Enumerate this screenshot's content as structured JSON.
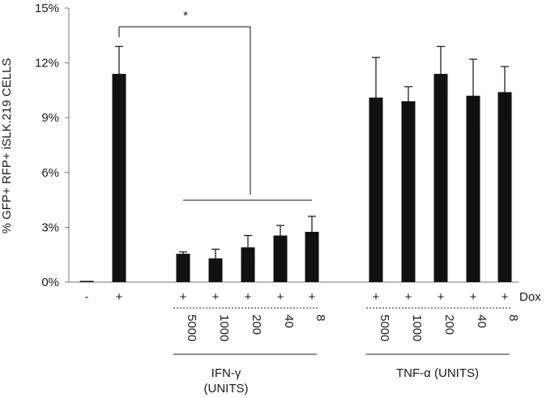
{
  "chart_data": {
    "type": "bar",
    "ylabel": "% GFP+ RFP+ iSLK.219 CELLS",
    "ylim": [
      0,
      15
    ],
    "yticks": [
      {
        "value": 0,
        "label": "0%"
      },
      {
        "value": 3,
        "label": "3%"
      },
      {
        "value": 6,
        "label": "6%"
      },
      {
        "value": 9,
        "label": "9%"
      },
      {
        "value": 12,
        "label": "12%"
      },
      {
        "value": 15,
        "label": "15%"
      }
    ],
    "grid": false,
    "bar_color": "#111111",
    "row_label": "Dox",
    "categories": [
      {
        "dox": "-",
        "dose": "",
        "value": 0.05,
        "error": 0
      },
      {
        "dox": "+",
        "dose": "",
        "value": 11.4,
        "error": 1.5
      },
      {
        "dox": "+",
        "dose": "5000",
        "value": 1.55,
        "error": 0.1
      },
      {
        "dox": "+",
        "dose": "1000",
        "value": 1.3,
        "error": 0.5
      },
      {
        "dox": "+",
        "dose": "200",
        "value": 1.9,
        "error": 0.65
      },
      {
        "dox": "+",
        "dose": "40",
        "value": 2.55,
        "error": 0.55
      },
      {
        "dox": "+",
        "dose": "8",
        "value": 2.75,
        "error": 0.85
      },
      {
        "dox": "+",
        "dose": "5000",
        "value": 10.1,
        "error": 2.2
      },
      {
        "dox": "+",
        "dose": "1000",
        "value": 9.9,
        "error": 0.8
      },
      {
        "dox": "+",
        "dose": "200",
        "value": 11.4,
        "error": 1.5
      },
      {
        "dox": "+",
        "dose": "40",
        "value": 10.2,
        "error": 2.0
      },
      {
        "dox": "+",
        "dose": "8",
        "value": 10.4,
        "error": 1.4
      }
    ],
    "groups": [
      {
        "name_lines": [
          "IFN-γ",
          "(UNITS)"
        ]
      },
      {
        "name_lines": [
          "TNF-α (UNITS)"
        ]
      }
    ],
    "annotations": [
      {
        "type": "significance",
        "label": "*"
      }
    ]
  }
}
